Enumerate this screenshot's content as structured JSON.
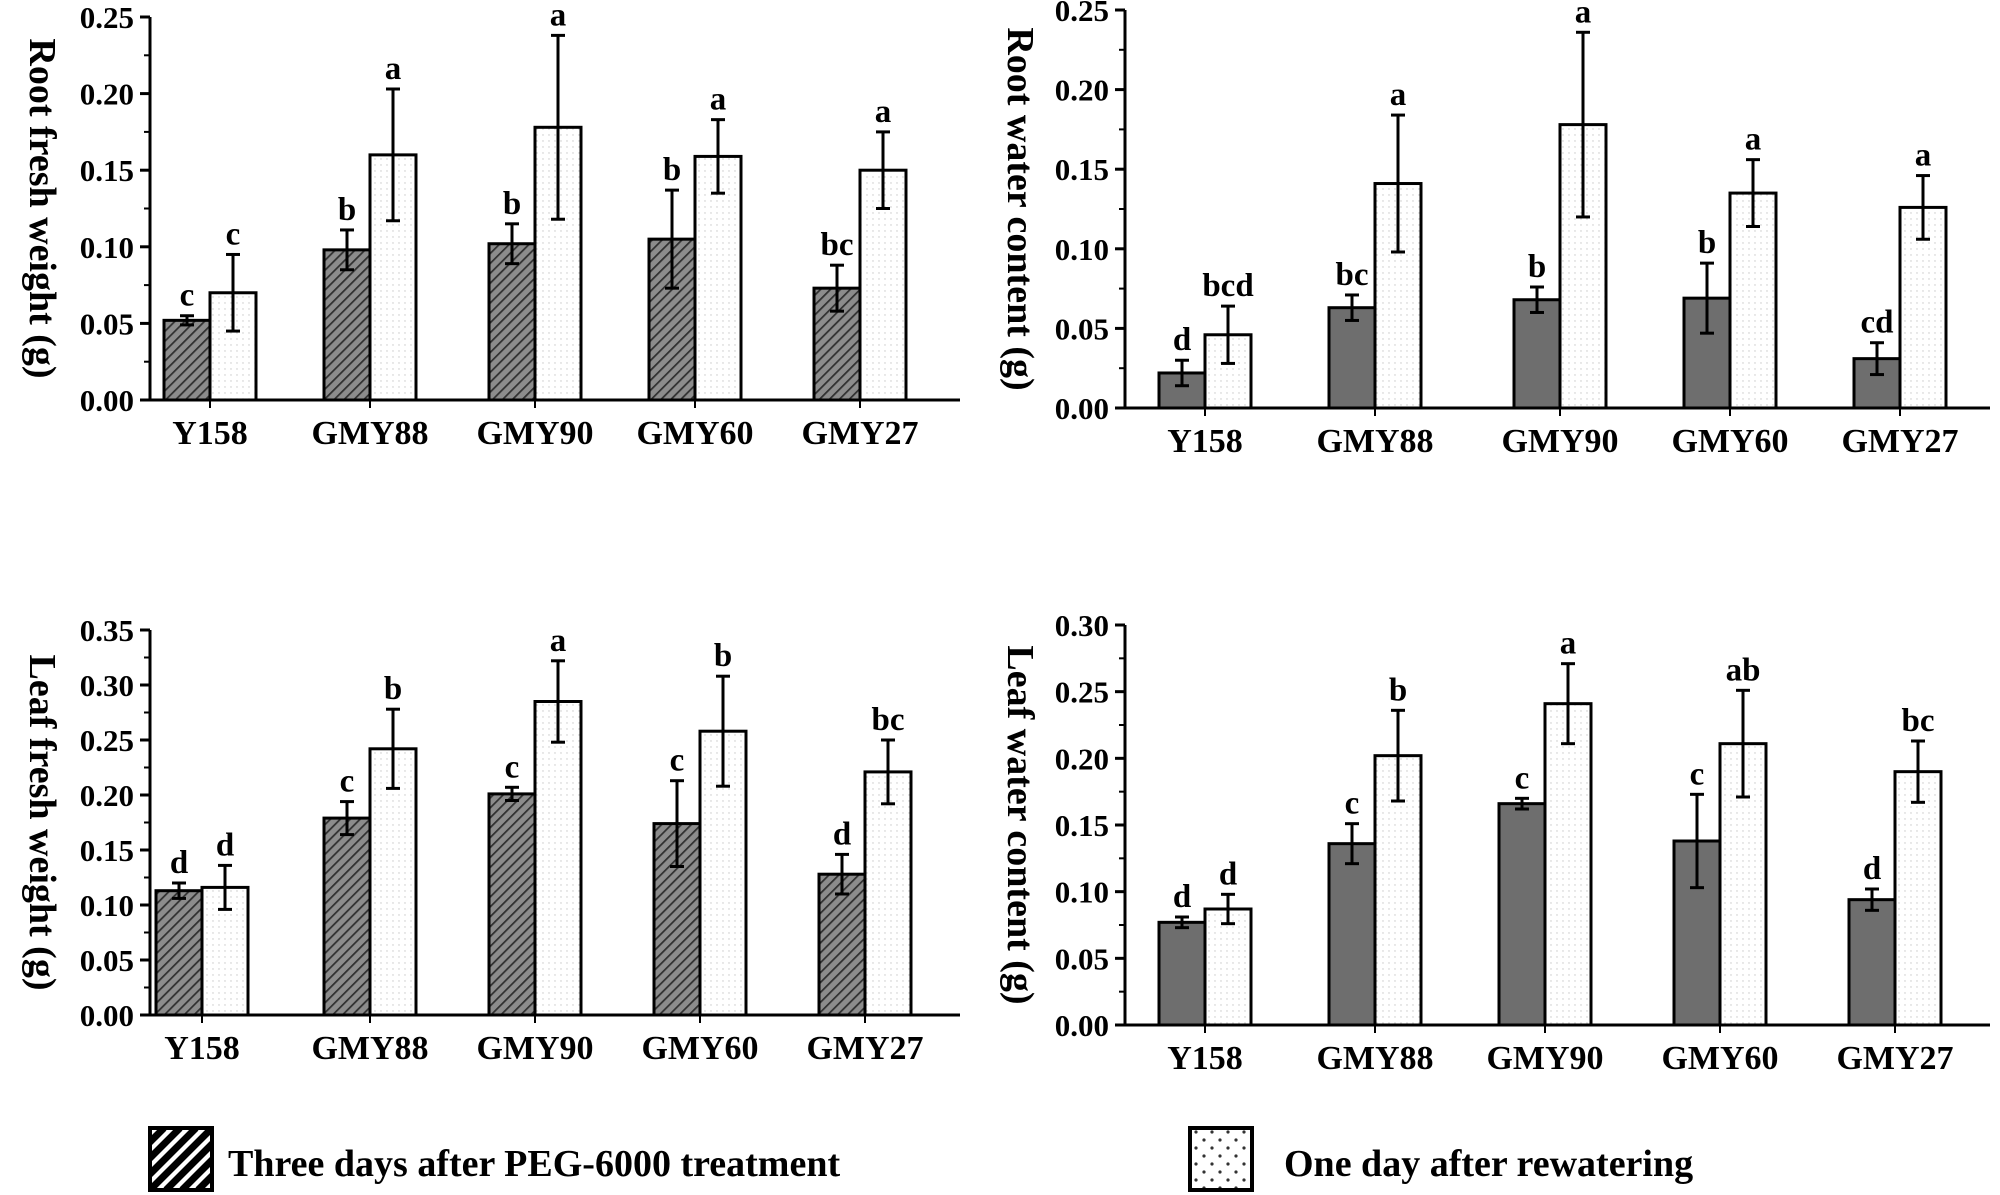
{
  "legend": {
    "treatment_label": "Three days after PEG-6000 treatment",
    "rewater_label": "One day after rewatering"
  },
  "colors": {
    "dark_bar": "#6e6e6e",
    "light_bar": "#ffffff",
    "axis": "#000000"
  },
  "chart_data": [
    {
      "type": "bar",
      "panel": "root-fresh-weight",
      "ylabel": "Root fresh weight (g)",
      "ylim": [
        0,
        0.25
      ],
      "yticks": [
        "0.00",
        "0.05",
        "0.10",
        "0.15",
        "0.20",
        "0.25"
      ],
      "categories": [
        "Y158",
        "GMY88",
        "GMY90",
        "GMY60",
        "GMY27"
      ],
      "dark_style": "hatch",
      "series": [
        {
          "name": "Three days after PEG-6000 treatment",
          "values": [
            0.052,
            0.098,
            0.102,
            0.105,
            0.073
          ],
          "errors": [
            0.003,
            0.013,
            0.013,
            0.032,
            0.015
          ],
          "letters": [
            "c",
            "b",
            "b",
            "b",
            "bc"
          ]
        },
        {
          "name": "One day after rewatering",
          "values": [
            0.07,
            0.16,
            0.178,
            0.159,
            0.15
          ],
          "errors": [
            0.025,
            0.043,
            0.06,
            0.024,
            0.025
          ],
          "letters": [
            "c",
            "a",
            "a",
            "a",
            "a"
          ]
        }
      ]
    },
    {
      "type": "bar",
      "panel": "root-water-content",
      "ylabel": "Root water content (g)",
      "ylim": [
        0,
        0.25
      ],
      "yticks": [
        "0.00",
        "0.05",
        "0.10",
        "0.15",
        "0.20",
        "0.25"
      ],
      "categories": [
        "Y158",
        "GMY88",
        "GMY90",
        "GMY60",
        "GMY27"
      ],
      "dark_style": "solid",
      "series": [
        {
          "name": "Three days after PEG-6000 treatment",
          "values": [
            0.022,
            0.063,
            0.068,
            0.069,
            0.031
          ],
          "errors": [
            0.008,
            0.008,
            0.008,
            0.022,
            0.01
          ],
          "letters": [
            "d",
            "bc",
            "b",
            "b",
            "cd"
          ]
        },
        {
          "name": "One day after rewatering",
          "values": [
            0.046,
            0.141,
            0.178,
            0.135,
            0.126
          ],
          "errors": [
            0.018,
            0.043,
            0.058,
            0.021,
            0.02
          ],
          "letters": [
            "bcd",
            "a",
            "a",
            "a",
            "a"
          ]
        }
      ]
    },
    {
      "type": "bar",
      "panel": "leaf-fresh-weight",
      "ylabel": "Leaf fresh weight (g)",
      "ylim": [
        0,
        0.35
      ],
      "yticks": [
        "0.00",
        "0.05",
        "0.10",
        "0.15",
        "0.20",
        "0.25",
        "0.30",
        "0.35"
      ],
      "categories": [
        "Y158",
        "GMY88",
        "GMY90",
        "GMY60",
        "GMY27"
      ],
      "dark_style": "hatch",
      "series": [
        {
          "name": "Three days after PEG-6000 treatment",
          "values": [
            0.113,
            0.179,
            0.201,
            0.174,
            0.128
          ],
          "errors": [
            0.007,
            0.015,
            0.006,
            0.039,
            0.018
          ],
          "letters": [
            "d",
            "c",
            "c",
            "c",
            "d"
          ]
        },
        {
          "name": "One day after rewatering",
          "values": [
            0.116,
            0.242,
            0.285,
            0.258,
            0.221
          ],
          "errors": [
            0.02,
            0.036,
            0.037,
            0.05,
            0.029
          ],
          "letters": [
            "d",
            "b",
            "a",
            "b",
            "bc"
          ]
        }
      ]
    },
    {
      "type": "bar",
      "panel": "leaf-water-content",
      "ylabel": "Leaf water content (g)",
      "ylim": [
        0,
        0.3
      ],
      "yticks": [
        "0.00",
        "0.05",
        "0.10",
        "0.15",
        "0.20",
        "0.25",
        "0.30"
      ],
      "categories": [
        "Y158",
        "GMY88",
        "GMY90",
        "GMY60",
        "GMY27"
      ],
      "dark_style": "solid",
      "series": [
        {
          "name": "Three days after PEG-6000 treatment",
          "values": [
            0.077,
            0.136,
            0.166,
            0.138,
            0.094
          ],
          "errors": [
            0.004,
            0.015,
            0.004,
            0.035,
            0.008
          ],
          "letters": [
            "d",
            "c",
            "c",
            "c",
            "d"
          ]
        },
        {
          "name": "One day after rewatering",
          "values": [
            0.087,
            0.202,
            0.241,
            0.211,
            0.19
          ],
          "errors": [
            0.011,
            0.034,
            0.03,
            0.04,
            0.023
          ],
          "letters": [
            "d",
            "b",
            "a",
            "ab",
            "bc"
          ]
        }
      ]
    }
  ]
}
